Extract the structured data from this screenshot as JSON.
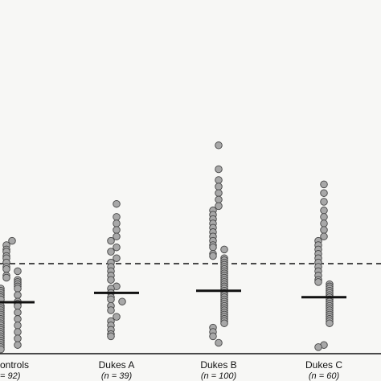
{
  "chart_data": {
    "type": "dotplot",
    "ylim": [
      0,
      100
    ],
    "cutoff": 41.5,
    "groups": [
      {
        "name": "ontrols",
        "n_label": "= 92)",
        "median": 23.7,
        "values": [
          52,
          50,
          48,
          47,
          45,
          44,
          42,
          40,
          39,
          38,
          36,
          35,
          34,
          33,
          32,
          31,
          30,
          30,
          29,
          28,
          27,
          27,
          26,
          25,
          24,
          23,
          22,
          22,
          21,
          20,
          19,
          19,
          18,
          17,
          16,
          16,
          15,
          14,
          13,
          13,
          12,
          11,
          10,
          10,
          9,
          8,
          7,
          7,
          6,
          5,
          4,
          4,
          3,
          2
        ]
      },
      {
        "name": "Dukes A",
        "n_label": "(n = 39)",
        "median": 28,
        "values": [
          69,
          63,
          60,
          57,
          54,
          52,
          49,
          47,
          44,
          42,
          40,
          38,
          36,
          34,
          31,
          30,
          28,
          26,
          25,
          24,
          22,
          20,
          17,
          15,
          13,
          11,
          9,
          8
        ]
      },
      {
        "name": "Dukes B",
        "n_label": "(n = 100)",
        "median": 29,
        "values": [
          96,
          85,
          80,
          77,
          74,
          71,
          68,
          66,
          64,
          62,
          60,
          58,
          56,
          54,
          52,
          50,
          49,
          48,
          46,
          45,
          44,
          43,
          42,
          41,
          40,
          39,
          38,
          37,
          36,
          35,
          34,
          33,
          32,
          31,
          30,
          29,
          28,
          27,
          26,
          25,
          24,
          23,
          22,
          21,
          20,
          19,
          18,
          17,
          16,
          15,
          14,
          12,
          10,
          8,
          5
        ]
      },
      {
        "name": "Dukes C",
        "n_label": "(n = 60)",
        "median": 26,
        "values": [
          78,
          74,
          70,
          66,
          63,
          60,
          57,
          54,
          52,
          50,
          48,
          46,
          44,
          42,
          40,
          38,
          36,
          34,
          33,
          32,
          31,
          30,
          29,
          28,
          27,
          26,
          25,
          24,
          23,
          22,
          21,
          20,
          19,
          18,
          17,
          16,
          15,
          14,
          4,
          3
        ]
      }
    ]
  }
}
